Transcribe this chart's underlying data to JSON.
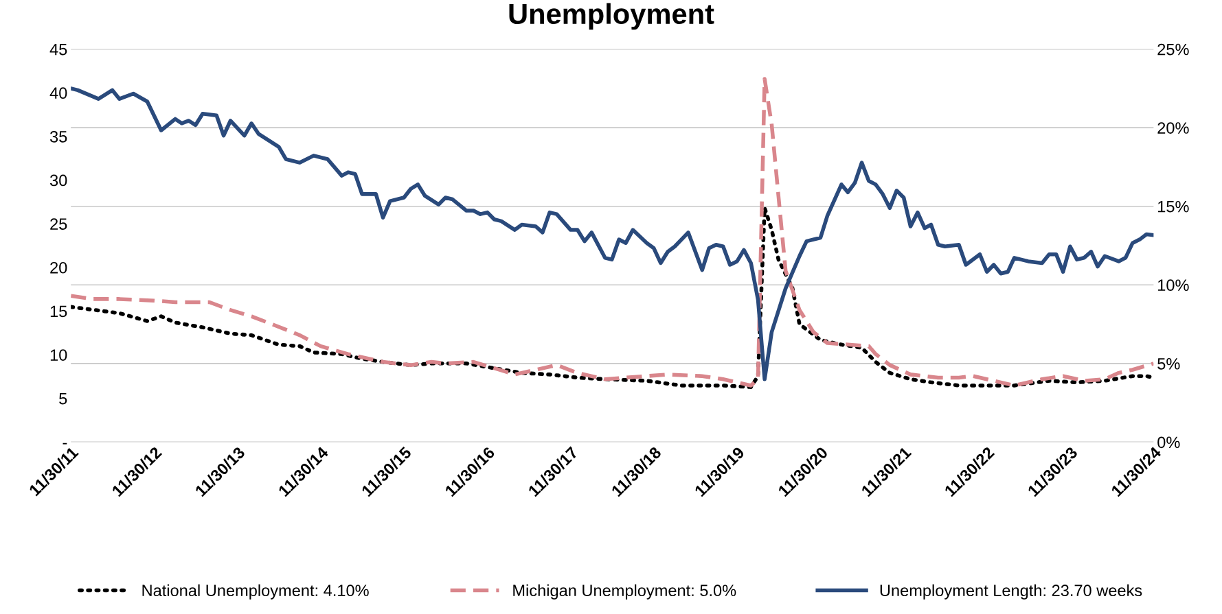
{
  "chart_data": {
    "type": "line",
    "title": "Unemployment",
    "xlim": [
      "2011-11",
      "2024-11"
    ],
    "xticks": [
      {
        "value": "2011-11",
        "label": "11/30/11"
      },
      {
        "value": "2012-11",
        "label": "11/30/12"
      },
      {
        "value": "2013-11",
        "label": "11/30/13"
      },
      {
        "value": "2014-11",
        "label": "11/30/14"
      },
      {
        "value": "2015-11",
        "label": "11/30/15"
      },
      {
        "value": "2016-11",
        "label": "11/30/16"
      },
      {
        "value": "2017-11",
        "label": "11/30/17"
      },
      {
        "value": "2018-11",
        "label": "11/30/18"
      },
      {
        "value": "2019-11",
        "label": "11/30/19"
      },
      {
        "value": "2020-11",
        "label": "11/30/20"
      },
      {
        "value": "2021-11",
        "label": "11/30/21"
      },
      {
        "value": "2022-11",
        "label": "11/30/22"
      },
      {
        "value": "2023-11",
        "label": "11/30/23"
      },
      {
        "value": "2024-11",
        "label": "11/30/24"
      }
    ],
    "ylim": [
      0,
      45
    ],
    "yticks": [
      {
        "value": 0,
        "label": "-"
      },
      5,
      10,
      15,
      20,
      25,
      30,
      35,
      40,
      45
    ],
    "y2lim": [
      0,
      25
    ],
    "y2ticks": [
      {
        "value": 0,
        "label": "0%"
      },
      {
        "value": 5,
        "label": "5%"
      },
      {
        "value": 10,
        "label": "10%"
      },
      {
        "value": 15,
        "label": "15%"
      },
      {
        "value": 20,
        "label": "20%"
      },
      {
        "value": 25,
        "label": "25%"
      }
    ],
    "grid": "y2",
    "legend": "bottom",
    "series": [
      {
        "name": "National Unemployment: 4.10%",
        "color": "#000000",
        "axis": "y2",
        "line_style": "dotted",
        "x": [
          "2011-11",
          "2012-06",
          "2012-10",
          "2012-12",
          "2013-02",
          "2013-06",
          "2013-10",
          "2014-01",
          "2014-05",
          "2014-08",
          "2014-10",
          "2015-02",
          "2015-05",
          "2015-08",
          "2015-12",
          "2016-03",
          "2016-08",
          "2016-12",
          "2017-04",
          "2017-08",
          "2017-12",
          "2018-04",
          "2018-10",
          "2019-03",
          "2019-09",
          "2020-01",
          "2020-02",
          "2020-03",
          "2020-04",
          "2020-05",
          "2020-07",
          "2020-08",
          "2020-11",
          "2021-02",
          "2021-05",
          "2021-07",
          "2021-09",
          "2021-12",
          "2022-03",
          "2022-07",
          "2022-12",
          "2023-03",
          "2023-08",
          "2023-12",
          "2024-04",
          "2024-08",
          "2024-10",
          "2024-11"
        ],
        "values": [
          8.6,
          8.2,
          7.7,
          8.0,
          7.6,
          7.3,
          6.9,
          6.8,
          6.2,
          6.1,
          5.7,
          5.6,
          5.3,
          5.1,
          4.9,
          5.0,
          5.0,
          4.7,
          4.4,
          4.3,
          4.1,
          4.0,
          3.9,
          3.6,
          3.6,
          3.5,
          4.2,
          14.9,
          13.5,
          11.6,
          9.8,
          7.5,
          6.5,
          6.2,
          6.0,
          5.1,
          4.4,
          4.0,
          3.8,
          3.6,
          3.6,
          3.6,
          3.9,
          3.8,
          3.9,
          4.2,
          4.2,
          4.1
        ]
      },
      {
        "name": "Michigan Unemployment: 5.0%",
        "color": "#d9868c",
        "axis": "y2",
        "line_style": "dashed",
        "x": [
          "2011-11",
          "2012-02",
          "2012-06",
          "2012-11",
          "2013-02",
          "2013-07",
          "2013-10",
          "2014-01",
          "2014-04",
          "2014-08",
          "2014-11",
          "2015-03",
          "2015-06",
          "2015-08",
          "2015-12",
          "2016-03",
          "2016-05",
          "2016-09",
          "2016-12",
          "2017-03",
          "2017-06",
          "2017-09",
          "2017-12",
          "2018-04",
          "2018-10",
          "2019-01",
          "2019-06",
          "2019-09",
          "2020-01",
          "2020-02",
          "2020-03",
          "2020-04",
          "2020-05",
          "2020-06",
          "2020-08",
          "2020-10",
          "2020-12",
          "2021-03",
          "2021-06",
          "2021-07",
          "2021-09",
          "2021-12",
          "2022-04",
          "2022-07",
          "2022-09",
          "2023-01",
          "2023-03",
          "2023-07",
          "2023-10",
          "2024-01",
          "2024-04",
          "2024-06",
          "2024-08",
          "2024-11"
        ],
        "values": [
          9.3,
          9.1,
          9.1,
          9.0,
          8.9,
          8.9,
          8.4,
          8.0,
          7.5,
          6.8,
          6.1,
          5.6,
          5.3,
          5.1,
          4.9,
          5.1,
          5.0,
          5.1,
          4.7,
          4.3,
          4.6,
          4.9,
          4.4,
          4.0,
          4.2,
          4.3,
          4.2,
          4.0,
          3.6,
          4.0,
          23.1,
          20.2,
          15.6,
          10.9,
          8.4,
          7.0,
          6.3,
          6.2,
          6.1,
          5.6,
          4.9,
          4.3,
          4.1,
          4.1,
          4.2,
          3.8,
          3.6,
          4.0,
          4.2,
          3.9,
          4.0,
          4.4,
          4.6,
          5.0
        ]
      },
      {
        "name": "Unemployment Length: 23.70 weeks",
        "color": "#2a4a7c",
        "axis": "y",
        "line_style": "solid",
        "x": [
          "2011-11",
          "2011-12",
          "2012-03",
          "2012-05",
          "2012-06",
          "2012-08",
          "2012-10",
          "2012-12",
          "2013-02",
          "2013-03",
          "2013-04",
          "2013-05",
          "2013-06",
          "2013-08",
          "2013-09",
          "2013-10",
          "2013-12",
          "2014-01",
          "2014-02",
          "2014-05",
          "2014-06",
          "2014-08",
          "2014-10",
          "2014-12",
          "2015-02",
          "2015-03",
          "2015-04",
          "2015-05",
          "2015-07",
          "2015-08",
          "2015-09",
          "2015-11",
          "2015-12",
          "2016-01",
          "2016-02",
          "2016-04",
          "2016-05",
          "2016-06",
          "2016-08",
          "2016-09",
          "2016-10",
          "2016-11",
          "2016-12",
          "2017-01",
          "2017-03",
          "2017-04",
          "2017-06",
          "2017-07",
          "2017-08",
          "2017-09",
          "2017-11",
          "2017-12",
          "2018-01",
          "2018-02",
          "2018-04",
          "2018-05",
          "2018-06",
          "2018-07",
          "2018-08",
          "2018-10",
          "2018-11",
          "2018-12",
          "2019-01",
          "2019-02",
          "2019-04",
          "2019-06",
          "2019-07",
          "2019-08",
          "2019-09",
          "2019-10",
          "2019-11",
          "2019-12",
          "2020-01",
          "2020-02",
          "2020-03",
          "2020-04",
          "2020-06",
          "2020-08",
          "2020-09",
          "2020-11",
          "2020-12",
          "2021-02",
          "2021-03",
          "2021-04",
          "2021-05",
          "2021-06",
          "2021-07",
          "2021-08",
          "2021-09",
          "2021-10",
          "2021-11",
          "2021-12",
          "2022-01",
          "2022-02",
          "2022-03",
          "2022-04",
          "2022-05",
          "2022-07",
          "2022-08",
          "2022-10",
          "2022-11",
          "2022-12",
          "2023-01",
          "2023-02",
          "2023-03",
          "2023-05",
          "2023-07",
          "2023-08",
          "2023-09",
          "2023-10",
          "2023-11",
          "2023-12",
          "2024-01",
          "2024-02",
          "2024-03",
          "2024-04",
          "2024-06",
          "2024-07",
          "2024-08",
          "2024-09",
          "2024-10",
          "2024-11"
        ],
        "values": [
          40.5,
          40.3,
          39.3,
          40.3,
          39.3,
          39.9,
          39.0,
          35.7,
          37.0,
          36.5,
          36.8,
          36.3,
          37.6,
          37.4,
          35.1,
          36.8,
          35.1,
          36.5,
          35.3,
          33.8,
          32.4,
          32.0,
          32.8,
          32.4,
          30.5,
          30.9,
          30.7,
          28.4,
          28.4,
          25.7,
          27.6,
          28.0,
          29.0,
          29.5,
          28.2,
          27.2,
          28.0,
          27.8,
          26.5,
          26.5,
          26.1,
          26.3,
          25.5,
          25.3,
          24.3,
          24.9,
          24.7,
          24.0,
          26.3,
          26.1,
          24.3,
          24.3,
          23.0,
          24.0,
          21.1,
          20.9,
          23.2,
          22.8,
          24.3,
          22.8,
          22.2,
          20.5,
          21.8,
          22.4,
          24.0,
          19.7,
          22.2,
          22.6,
          22.4,
          20.3,
          20.7,
          22.0,
          20.5,
          16.3,
          7.2,
          12.6,
          17.6,
          21.3,
          23.0,
          23.4,
          25.9,
          29.5,
          28.6,
          29.7,
          32.0,
          29.9,
          29.5,
          28.4,
          26.8,
          28.8,
          28.0,
          24.7,
          26.3,
          24.5,
          24.9,
          22.6,
          22.4,
          22.6,
          20.3,
          21.5,
          19.5,
          20.3,
          19.3,
          19.5,
          21.1,
          20.7,
          20.5,
          21.5,
          21.5,
          19.5,
          22.4,
          20.9,
          21.1,
          21.8,
          20.1,
          21.3,
          20.7,
          21.1,
          22.8,
          23.2,
          23.8,
          23.7
        ]
      }
    ]
  }
}
